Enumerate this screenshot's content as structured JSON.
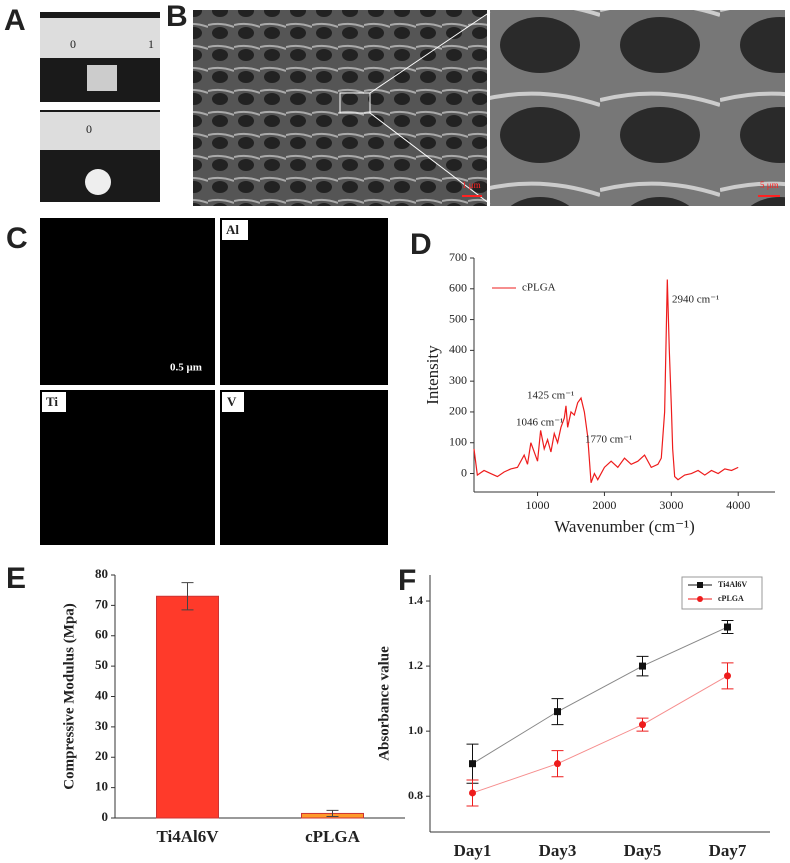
{
  "panels": {
    "a": "A",
    "b": "B",
    "c": "C",
    "d": "D",
    "e": "E",
    "f": "F"
  },
  "images": {
    "ruler": [
      "0",
      "1",
      "0"
    ],
    "scale_bars": [
      "1 μm",
      "5 μm",
      "0.5 μm"
    ],
    "maps": [
      "Al",
      "Ti",
      "V"
    ]
  },
  "chart_data": [
    {
      "type": "line",
      "x_label": "Wavenumber (cm⁻¹)",
      "y_label": "Intensity",
      "x": [
        50,
        100,
        200,
        300,
        400,
        500,
        600,
        700,
        800,
        850,
        900,
        950,
        1000,
        1046,
        1100,
        1150,
        1200,
        1250,
        1300,
        1350,
        1400,
        1425,
        1450,
        1500,
        1550,
        1600,
        1650,
        1700,
        1750,
        1770,
        1800,
        1850,
        1900,
        2000,
        2100,
        2200,
        2300,
        2400,
        2500,
        2600,
        2700,
        2800,
        2850,
        2900,
        2940,
        2970,
        3000,
        3020,
        3050,
        3100,
        3200,
        3300,
        3400,
        3500,
        3600,
        3700,
        3800,
        3900,
        4000
      ],
      "series": [
        {
          "name": "cPLGA",
          "color": "#ee1c1c",
          "values": [
            80,
            -5,
            10,
            0,
            -10,
            5,
            15,
            20,
            60,
            30,
            100,
            70,
            40,
            140,
            80,
            110,
            70,
            130,
            100,
            150,
            180,
            220,
            150,
            200,
            190,
            230,
            245,
            200,
            120,
            60,
            -30,
            0,
            -20,
            20,
            40,
            20,
            50,
            30,
            40,
            60,
            20,
            30,
            50,
            200,
            630,
            400,
            220,
            80,
            -10,
            -20,
            -5,
            0,
            10,
            -5,
            10,
            0,
            15,
            10,
            20
          ]
        }
      ],
      "annotations": [
        "2940 cm⁻¹",
        "1425 cm⁻¹",
        "1046 cm⁻¹",
        "1770 cm⁻¹"
      ],
      "xlim": [
        50,
        4550
      ],
      "ylim": [
        -60,
        700
      ],
      "xticks": [
        1000,
        2000,
        3000,
        4000
      ],
      "yticks": [
        0,
        100,
        200,
        300,
        400,
        500,
        600,
        700
      ],
      "legend": "upper-left"
    },
    {
      "type": "bar",
      "y_label": "Compressive Modulus (Mpa)",
      "categories": [
        "Ti4Al6V",
        "cPLGA"
      ],
      "values": [
        73,
        1.5
      ],
      "errors": [
        4.5,
        1
      ],
      "colors": [
        "#ff3a2a",
        "#ff9a2a"
      ],
      "ylim": [
        0,
        80
      ],
      "yticks": [
        0,
        10,
        20,
        30,
        40,
        50,
        60,
        70,
        80
      ]
    },
    {
      "type": "line",
      "y_label": "Absorbance value",
      "categories": [
        "Day1",
        "Day3",
        "Day5",
        "Day7"
      ],
      "series": [
        {
          "name": "Ti4Al6V",
          "color": "#111111",
          "marker": "square",
          "values": [
            0.9,
            1.06,
            1.2,
            1.32
          ],
          "errors": [
            0.06,
            0.04,
            0.03,
            0.02
          ]
        },
        {
          "name": "cPLGA",
          "color": "#ee1c1c",
          "marker": "circle",
          "values": [
            0.81,
            0.9,
            1.02,
            1.17
          ],
          "errors": [
            0.04,
            0.04,
            0.02,
            0.04
          ]
        }
      ],
      "ylim": [
        0.69,
        1.48
      ],
      "yticks": [
        0.8,
        {
          "value": 1,
          "label": "1.0"
        },
        1.2,
        1.4
      ],
      "legend": "upper-right"
    }
  ]
}
